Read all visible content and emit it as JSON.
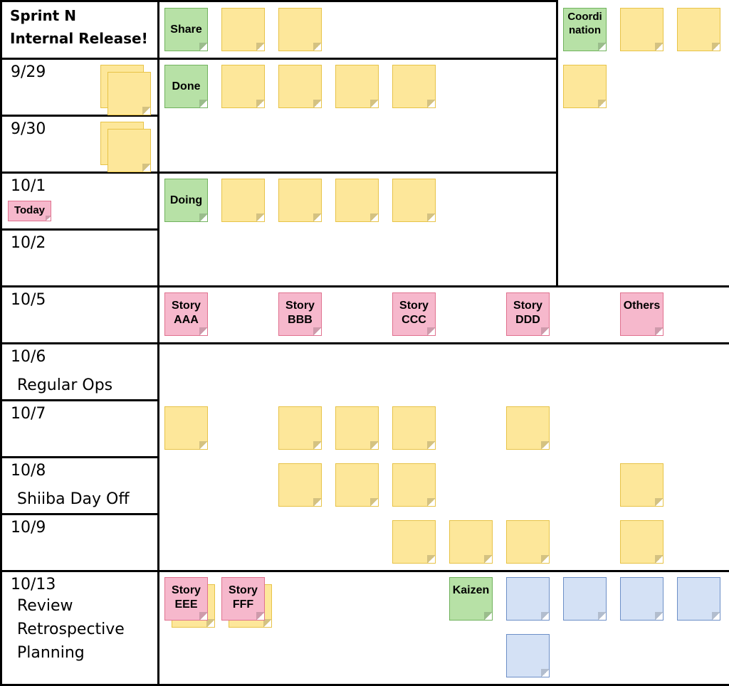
{
  "board": {
    "title_line1": "Sprint N",
    "title_line2": "Internal Release!",
    "days": [
      "9/29",
      "9/30",
      "10/1",
      "10/2",
      "10/5",
      "10/6",
      "10/7",
      "10/8",
      "10/9",
      "10/13"
    ],
    "today_label": "Today",
    "day_notes": {
      "regular_ops": "Regular Ops",
      "day_off": "Shiiba Day Off",
      "review": "Review",
      "retrospective": "Retrospective",
      "planning": "Planning"
    }
  },
  "lanes": {
    "share": "Share",
    "done": "Done",
    "doing": "Doing",
    "coordination": "Coordination",
    "kaizen": "Kaizen"
  },
  "stories": {
    "aaa": "Story AAA",
    "bbb": "Story BBB",
    "ccc": "Story CCC",
    "ddd": "Story DDD",
    "others": "Others",
    "eee": "Story EEE",
    "fff": "Story FFF"
  },
  "colors": {
    "yellow_note": "#fde79a",
    "green_note": "#b7e1a6",
    "pink_note": "#f6b8cc",
    "blue_note": "#d4e1f5",
    "border": "#000000"
  }
}
